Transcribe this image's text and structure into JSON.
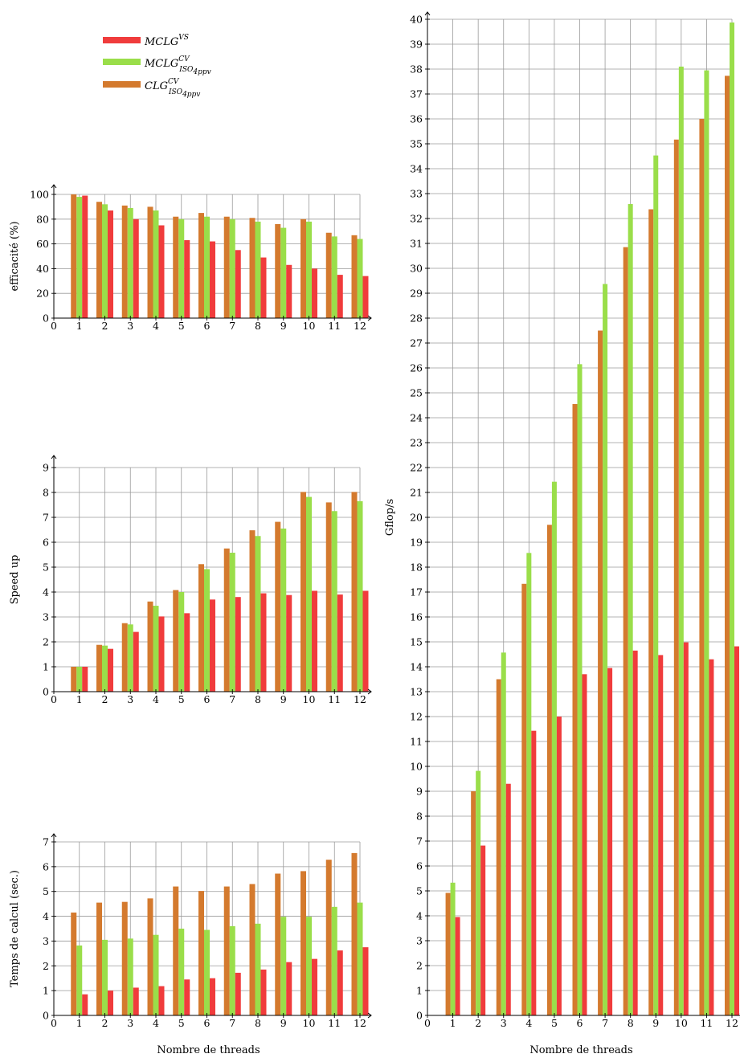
{
  "colors": {
    "clg_iso": "#d47a2e",
    "mclg_iso": "#9ade4a",
    "mclg_vs": "#f03c3c",
    "grid": "#9a9a9a"
  },
  "legend": {
    "items": [
      {
        "key": "mclg_vs",
        "base": "MCLG",
        "sup": "VS",
        "sub": ""
      },
      {
        "key": "mclg_iso",
        "base": "MCLG",
        "sup": "CV",
        "sub": "ISO",
        "subsub": "4ppv"
      },
      {
        "key": "clg_iso",
        "base": "CLG",
        "sup": "CV",
        "sub": "ISO",
        "subsub": "4ppv"
      }
    ]
  },
  "chart_data": [
    {
      "id": "efficacite",
      "type": "bar",
      "ylabel": "efficacité (%)",
      "xlabel": "",
      "ylim": [
        0,
        100
      ],
      "yticks": [
        0,
        20,
        40,
        60,
        80,
        100
      ],
      "xlim": [
        0,
        12
      ],
      "xticks": [
        0,
        1,
        2,
        3,
        4,
        5,
        6,
        7,
        8,
        9,
        10,
        11,
        12
      ],
      "categories": [
        1,
        2,
        3,
        4,
        5,
        6,
        7,
        8,
        9,
        10,
        11,
        12
      ],
      "series": [
        {
          "key": "clg_iso",
          "values": [
            100,
            94,
            91,
            90,
            82,
            85,
            82,
            81,
            76,
            80,
            69,
            67
          ]
        },
        {
          "key": "mclg_iso",
          "values": [
            98,
            92,
            89,
            87,
            80,
            82,
            80,
            78,
            73,
            78,
            66,
            64
          ]
        },
        {
          "key": "mclg_vs",
          "values": [
            99,
            87,
            80,
            75,
            63,
            62,
            55,
            49,
            43,
            40,
            35,
            34
          ]
        }
      ]
    },
    {
      "id": "speedup",
      "type": "bar",
      "ylabel": "Speed up",
      "xlabel": "",
      "ylim": [
        0,
        9
      ],
      "yticks": [
        0,
        1,
        2,
        3,
        4,
        5,
        6,
        7,
        8,
        9
      ],
      "xlim": [
        0,
        12
      ],
      "xticks": [
        0,
        1,
        2,
        3,
        4,
        5,
        6,
        7,
        8,
        9,
        10,
        11,
        12
      ],
      "categories": [
        1,
        2,
        3,
        4,
        5,
        6,
        7,
        8,
        9,
        10,
        11,
        12
      ],
      "series": [
        {
          "key": "clg_iso",
          "values": [
            1.0,
            1.88,
            2.75,
            3.62,
            4.08,
            5.12,
            5.75,
            6.48,
            6.82,
            8.02,
            7.6,
            8.02
          ]
        },
        {
          "key": "mclg_iso",
          "values": [
            1.0,
            1.85,
            2.7,
            3.45,
            4.0,
            4.92,
            5.58,
            6.25,
            6.55,
            7.82,
            7.25,
            7.65
          ]
        },
        {
          "key": "mclg_vs",
          "values": [
            1.0,
            1.72,
            2.4,
            3.02,
            3.15,
            3.7,
            3.8,
            3.95,
            3.88,
            4.05,
            3.9,
            4.05
          ]
        }
      ]
    },
    {
      "id": "temps",
      "type": "bar",
      "ylabel": "Temps de calcul (sec.)",
      "xlabel": "Nombre de threads",
      "ylim": [
        0,
        7
      ],
      "yticks": [
        0,
        1,
        2,
        3,
        4,
        5,
        6,
        7
      ],
      "xlim": [
        0,
        12
      ],
      "xticks": [
        0,
        1,
        2,
        3,
        4,
        5,
        6,
        7,
        8,
        9,
        10,
        11,
        12
      ],
      "categories": [
        1,
        2,
        3,
        4,
        5,
        6,
        7,
        8,
        9,
        10,
        11,
        12
      ],
      "series": [
        {
          "key": "clg_iso",
          "values": [
            4.15,
            4.55,
            4.58,
            4.72,
            5.2,
            5.02,
            5.2,
            5.3,
            5.72,
            5.82,
            6.28,
            6.55
          ]
        },
        {
          "key": "mclg_iso",
          "values": [
            2.82,
            3.05,
            3.1,
            3.25,
            3.5,
            3.45,
            3.6,
            3.7,
            3.98,
            3.98,
            4.38,
            4.55
          ]
        },
        {
          "key": "mclg_vs",
          "values": [
            0.85,
            1.0,
            1.12,
            1.18,
            1.45,
            1.5,
            1.72,
            1.85,
            2.15,
            2.28,
            2.62,
            2.75
          ]
        }
      ]
    },
    {
      "id": "gflops",
      "type": "bar",
      "ylabel": "Gflop/s",
      "xlabel": "Nombre de threads",
      "ylim": [
        0,
        40
      ],
      "yticks": [
        0,
        1,
        2,
        3,
        4,
        5,
        6,
        7,
        8,
        9,
        10,
        11,
        12,
        13,
        14,
        15,
        16,
        17,
        18,
        19,
        20,
        21,
        22,
        23,
        24,
        25,
        26,
        27,
        28,
        29,
        30,
        31,
        32,
        33,
        34,
        35,
        36,
        37,
        38,
        39,
        40
      ],
      "xlim": [
        0,
        12
      ],
      "xticks": [
        0,
        1,
        2,
        3,
        4,
        5,
        6,
        7,
        8,
        9,
        10,
        11,
        12
      ],
      "categories": [
        1,
        2,
        3,
        4,
        5,
        6,
        7,
        8,
        9,
        10,
        11,
        12
      ],
      "series": [
        {
          "key": "clg_iso",
          "values": [
            4.92,
            9.0,
            13.5,
            17.33,
            19.7,
            24.55,
            27.5,
            30.85,
            32.37,
            35.17,
            36.0,
            37.73
          ]
        },
        {
          "key": "mclg_iso",
          "values": [
            5.33,
            9.82,
            14.57,
            18.57,
            21.43,
            26.15,
            29.37,
            32.58,
            34.53,
            38.1,
            37.95,
            39.87
          ]
        },
        {
          "key": "mclg_vs",
          "values": [
            3.95,
            6.82,
            9.3,
            11.43,
            12.0,
            13.7,
            13.95,
            14.65,
            14.47,
            14.98,
            14.3,
            14.82
          ]
        }
      ]
    }
  ]
}
